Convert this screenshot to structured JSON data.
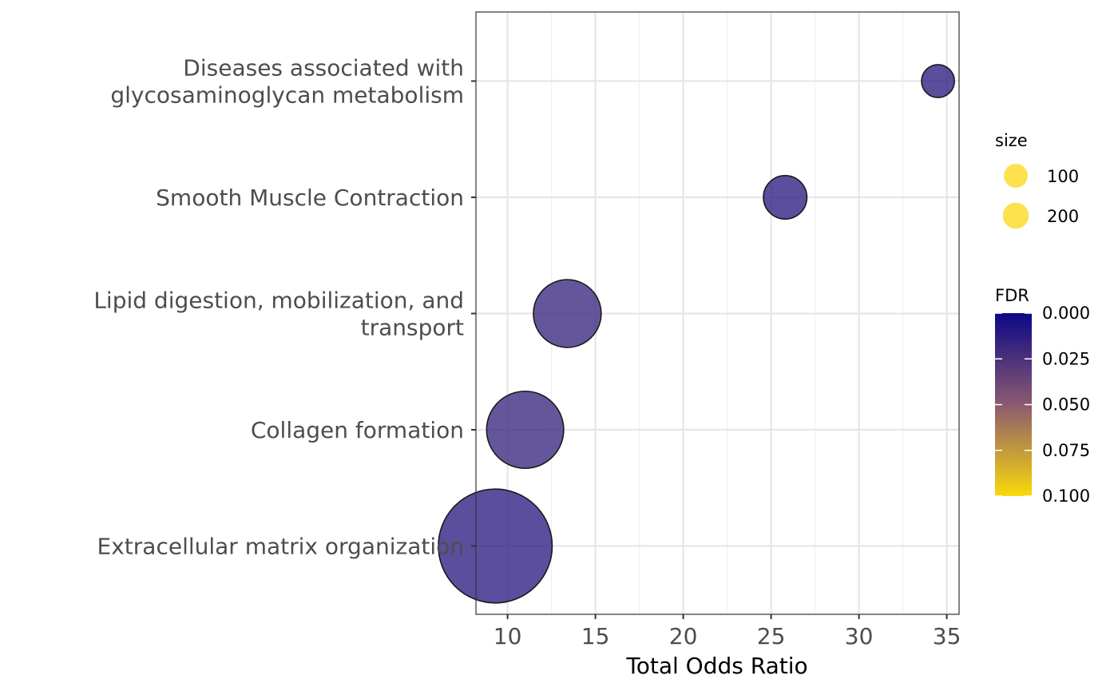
{
  "chart_data": {
    "type": "scatter",
    "xlabel": "Total Odds Ratio",
    "ylabel": "",
    "xlim": [
      8.2,
      35.7
    ],
    "xticks": [
      10,
      15,
      20,
      25,
      30,
      35
    ],
    "categories": [
      "Diseases associated with glycosaminoglycan metabolism",
      "Smooth Muscle Contraction",
      "Lipid digestion, mobilization, and transport",
      "Collagen formation",
      "Extracellular matrix organization"
    ],
    "category_lines": [
      [
        "Diseases associated with",
        "glycosaminoglycan metabolism"
      ],
      [
        "Smooth Muscle Contraction"
      ],
      [
        "Lipid digestion, mobilization, and",
        "transport"
      ],
      [
        "Collagen formation"
      ],
      [
        "Extracellular matrix organization"
      ]
    ],
    "points": [
      {
        "category": "Diseases associated with glycosaminoglycan metabolism",
        "x": 34.5,
        "size": 20,
        "fdr": 0.012
      },
      {
        "category": "Smooth Muscle Contraction",
        "x": 25.8,
        "size": 35,
        "fdr": 0.012
      },
      {
        "category": "Lipid digestion, mobilization, and transport",
        "x": 13.4,
        "size": 85,
        "fdr": 0.018
      },
      {
        "category": "Collagen formation",
        "x": 11.0,
        "size": 110,
        "fdr": 0.018
      },
      {
        "category": "Extracellular matrix organization",
        "x": 9.3,
        "size": 240,
        "fdr": 0.012
      }
    ],
    "grid": true,
    "legend_position": "right",
    "size_legend": {
      "title": "size",
      "entries": [
        {
          "label": "100",
          "value": 100
        },
        {
          "label": "200",
          "value": 200
        }
      ],
      "color": "#FDDC30"
    },
    "color_legend": {
      "title": "FDR",
      "range": [
        0,
        0.1
      ],
      "ticks": [
        "0.000",
        "0.025",
        "0.050",
        "0.075",
        "0.100"
      ],
      "low_color": "#0D0887",
      "mid_color": "#8B5A70",
      "high_color": "#F9D90A"
    }
  }
}
